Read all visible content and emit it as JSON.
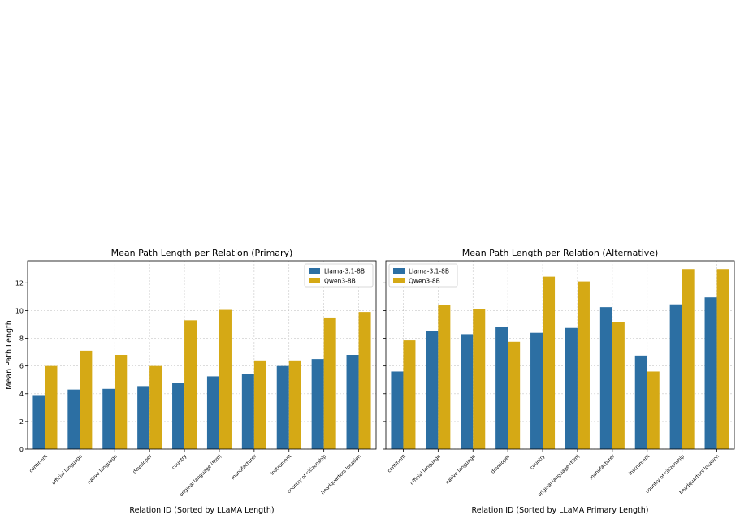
{
  "chart_data": [
    {
      "type": "bar",
      "title": "Mean Path Length per Relation (Primary)",
      "xlabel": "Relation ID (Sorted by LLaMA Length)",
      "ylabel": "Mean Path Length",
      "ylim": [
        0,
        13.6
      ],
      "yticks": [
        0,
        2,
        4,
        6,
        8,
        10,
        12
      ],
      "grid": true,
      "legend_position": "top-right",
      "categories": [
        "continent",
        "official language",
        "native language",
        "developer",
        "country",
        "original language (film)",
        "manufacturer",
        "instrument",
        "country of citizenship",
        "headquarters location"
      ],
      "series": [
        {
          "name": "Llama-3.1-8B",
          "color": "#2c6fa3",
          "values": [
            3.9,
            4.3,
            4.35,
            4.55,
            4.8,
            5.25,
            5.45,
            6.0,
            6.5,
            6.8
          ]
        },
        {
          "name": "Qwen3-8B",
          "color": "#d5a915",
          "values": [
            6.0,
            7.1,
            6.8,
            6.0,
            9.3,
            10.05,
            6.4,
            6.4,
            9.5,
            9.9
          ]
        }
      ]
    },
    {
      "type": "bar",
      "title": "Mean Path Length per Relation (Alternative)",
      "xlabel": "Relation ID (Sorted by LLaMA Primary Length)",
      "ylabel": "",
      "ylim": [
        0,
        13.6
      ],
      "yticks": [
        0,
        2,
        4,
        6,
        8,
        10,
        12
      ],
      "grid": true,
      "legend_position": "top-left",
      "categories": [
        "continent",
        "official language",
        "native language",
        "developer",
        "country",
        "original language (film)",
        "manufacturer",
        "instrument",
        "country of citizenship",
        "headquarters location"
      ],
      "series": [
        {
          "name": "Llama-3.1-8B",
          "color": "#2c6fa3",
          "values": [
            5.6,
            8.5,
            8.3,
            8.8,
            8.4,
            8.75,
            10.25,
            6.75,
            10.45,
            10.95
          ]
        },
        {
          "name": "Qwen3-8B",
          "color": "#d5a915",
          "values": [
            7.85,
            10.4,
            10.1,
            7.75,
            12.45,
            12.1,
            9.2,
            5.6,
            13.0,
            13.0
          ]
        }
      ]
    }
  ]
}
